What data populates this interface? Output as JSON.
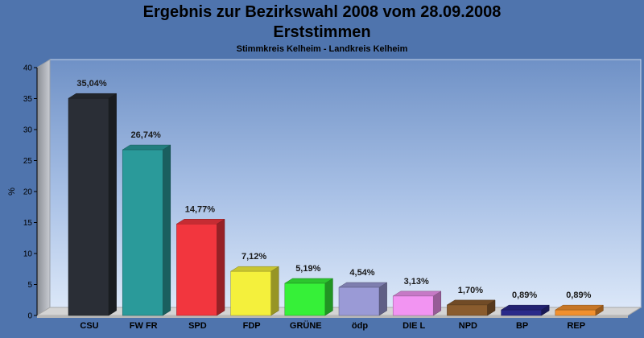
{
  "chart_data": {
    "type": "bar",
    "title": "Ergebnis zur Bezirkswahl 2008 vom 28.09.2008",
    "title2": "Erststimmen",
    "subtitle": "Stimmkreis Kelheim - Landkreis Kelheim",
    "ylabel": "%",
    "xlabel": "",
    "ylim": [
      0,
      40
    ],
    "yticks": [
      0,
      5,
      10,
      15,
      20,
      25,
      30,
      35,
      40
    ],
    "categories": [
      "CSU",
      "FW FR",
      "SPD",
      "FDP",
      "GRÜNE",
      "ödp",
      "DIE L",
      "NPD",
      "BP",
      "REP"
    ],
    "values": [
      35.04,
      26.74,
      14.77,
      7.12,
      5.19,
      4.54,
      3.13,
      1.7,
      0.89,
      0.89
    ],
    "value_labels": [
      "35,04%",
      "26,74%",
      "14,77%",
      "7,12%",
      "5,19%",
      "4,54%",
      "3,13%",
      "1,70%",
      "0,89%",
      "0,89%"
    ],
    "colors": [
      "#2a2e36",
      "#2a9a9a",
      "#f2363e",
      "#f4f03c",
      "#36f038",
      "#9a9ad6",
      "#f294f2",
      "#8a5c2e",
      "#2a2a8a",
      "#f2902e"
    ],
    "grid": false,
    "legend": "none",
    "style": "3d-bars"
  }
}
